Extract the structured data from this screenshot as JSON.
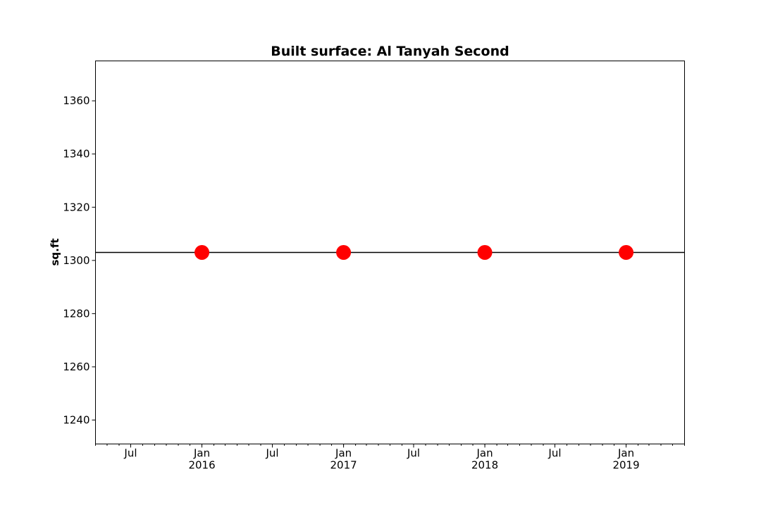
{
  "chart_data": {
    "type": "scatter",
    "title": "Built surface: Al Tanyah Second",
    "xlabel": "",
    "ylabel": "sq.ft",
    "x_axis_type": "date",
    "xlim": [
      "2015-04-01",
      "2019-06-01"
    ],
    "ylim": [
      1231,
      1375
    ],
    "y_ticks": [
      1240,
      1260,
      1280,
      1300,
      1320,
      1340,
      1360
    ],
    "x_major_ticks": [
      {
        "date": "2015-07-01",
        "label": "Jul",
        "sublabel": ""
      },
      {
        "date": "2016-01-01",
        "label": "Jan",
        "sublabel": "2016"
      },
      {
        "date": "2016-07-01",
        "label": "Jul",
        "sublabel": ""
      },
      {
        "date": "2017-01-01",
        "label": "Jan",
        "sublabel": "2017"
      },
      {
        "date": "2017-07-01",
        "label": "Jul",
        "sublabel": ""
      },
      {
        "date": "2018-01-01",
        "label": "Jan",
        "sublabel": "2018"
      },
      {
        "date": "2018-07-01",
        "label": "Jul",
        "sublabel": ""
      },
      {
        "date": "2019-01-01",
        "label": "Jan",
        "sublabel": "2019"
      }
    ],
    "series": [
      {
        "color": "#ff0000",
        "marker": "circle",
        "points": [
          {
            "x": "2016-01-01",
            "y": 1303
          },
          {
            "x": "2017-01-01",
            "y": 1303
          },
          {
            "x": "2018-01-01",
            "y": 1303
          },
          {
            "x": "2019-01-01",
            "y": 1303
          }
        ]
      }
    ],
    "reference_line": {
      "y": 1303,
      "color": "#000000"
    },
    "grid": false,
    "legend": "none"
  }
}
